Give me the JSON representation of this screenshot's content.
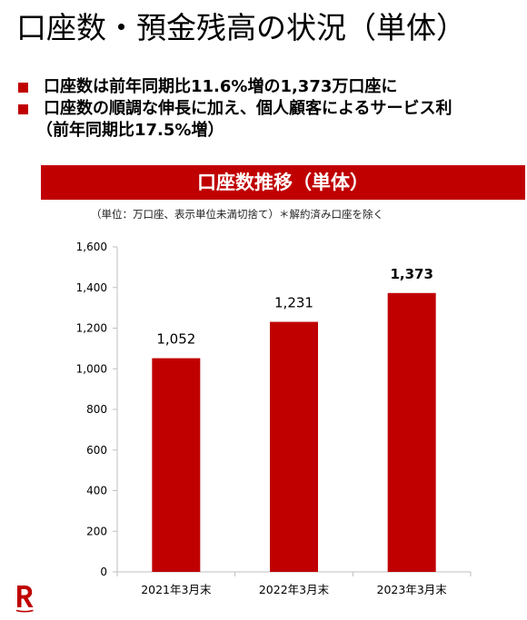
{
  "page": {
    "title": "口座数・預金残高の状況（単体）",
    "bullets": [
      "口座数は前年同期比11.6%増の1,373万口座に",
      "口座数の順調な伸長に加え、個人顧客によるサービス利"
    ],
    "bullet2_cont": "（前年同期比17.5%増）",
    "banner": "口座数推移（単体）",
    "note": "（単位：万口座、表示単位未満切捨て）＊解約済み口座を除く"
  },
  "colors": {
    "accent": "#c00000",
    "axis": "#bfbfbf"
  },
  "icons": {
    "logo": "rakuten-r-logo"
  },
  "chart_data": {
    "type": "bar",
    "categories": [
      "2021年3月末",
      "2022年3月末",
      "2023年3月末"
    ],
    "values": [
      1052,
      1231,
      1373
    ],
    "value_labels": [
      "1,052",
      "1,231",
      "1,373"
    ],
    "highlight_last": true,
    "ylim": [
      0,
      1600
    ],
    "yticks": [
      0,
      200,
      400,
      600,
      800,
      1000,
      1200,
      1400,
      1600
    ],
    "ytick_labels": [
      "0",
      "200",
      "400",
      "600",
      "800",
      "1,000",
      "1,200",
      "1,400",
      "1,600"
    ],
    "grid": false
  }
}
